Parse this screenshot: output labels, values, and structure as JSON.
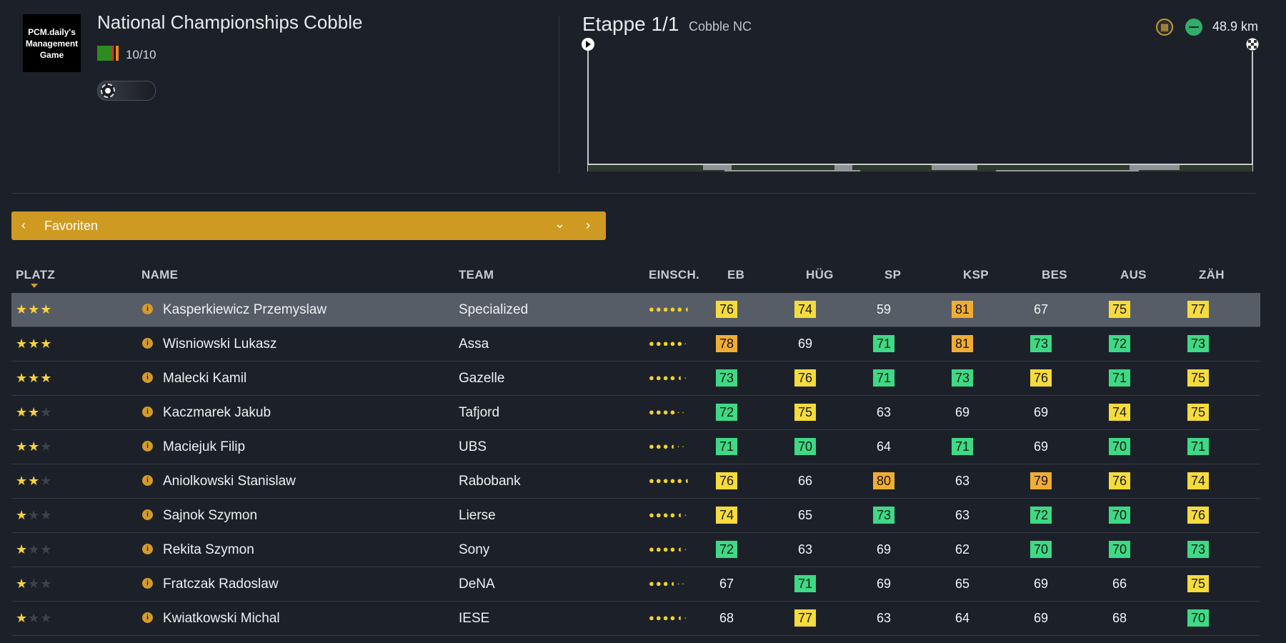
{
  "header": {
    "logo_text": "PCM.daily's Management Game",
    "race_title": "National Championships Cobble",
    "race_count": "10/10",
    "flag_icon": "flag-zambia-icon"
  },
  "stage": {
    "title": "Etappe 1/1",
    "subtitle": "Cobble NC",
    "distance": "48.9 km",
    "icons": [
      "cobble-icon",
      "flat-icon"
    ]
  },
  "filter": {
    "label": "Favoriten",
    "color": "#cf9a22"
  },
  "table": {
    "columns": [
      "PLATZ",
      "NAME",
      "TEAM",
      "EINSCH.",
      "EB",
      "HÜG",
      "SP",
      "KSP",
      "BES",
      "AUS",
      "ZÄH"
    ],
    "rows": [
      {
        "stars": 3,
        "name": "Kasperkiewicz Przemyslaw",
        "team": "Specialized",
        "dots": "●●●●●◖",
        "stats": [
          "76",
          "74",
          "59",
          "81",
          "67",
          "75",
          "77"
        ],
        "classes": [
          "yellow",
          "yellow",
          "plain",
          "orange",
          "plain",
          "yellow",
          "yellow"
        ]
      },
      {
        "stars": 3,
        "name": "Wisniowski Lukasz",
        "team": "Assa",
        "dots": "●●●●●·",
        "stats": [
          "78",
          "69",
          "71",
          "81",
          "73",
          "72",
          "73"
        ],
        "classes": [
          "orange",
          "plain",
          "green",
          "orange",
          "green",
          "green",
          "green"
        ]
      },
      {
        "stars": 3,
        "name": "Malecki Kamil",
        "team": "Gazelle",
        "dots": "●●●●◖·",
        "stats": [
          "73",
          "76",
          "71",
          "73",
          "76",
          "71",
          "75"
        ],
        "classes": [
          "green",
          "yellow",
          "green",
          "green",
          "yellow",
          "green",
          "yellow"
        ]
      },
      {
        "stars": 2,
        "name": "Kaczmarek Jakub",
        "team": "Tafjord",
        "dots": "●●●●··",
        "stats": [
          "72",
          "75",
          "63",
          "69",
          "69",
          "74",
          "75"
        ],
        "classes": [
          "green",
          "yellow",
          "plain",
          "plain",
          "plain",
          "yellow",
          "yellow"
        ]
      },
      {
        "stars": 2,
        "name": "Maciejuk Filip",
        "team": "UBS",
        "dots": "●●●◖··",
        "stats": [
          "71",
          "70",
          "64",
          "71",
          "69",
          "70",
          "71"
        ],
        "classes": [
          "green",
          "green",
          "plain",
          "green",
          "plain",
          "green",
          "green"
        ]
      },
      {
        "stars": 2,
        "name": "Aniolkowski Stanislaw",
        "team": "Rabobank",
        "dots": "●●●●●◖",
        "stats": [
          "76",
          "66",
          "80",
          "63",
          "79",
          "76",
          "74"
        ],
        "classes": [
          "yellow",
          "plain",
          "orange",
          "plain",
          "orange",
          "yellow",
          "yellow"
        ]
      },
      {
        "stars": 1,
        "name": "Sajnok Szymon",
        "team": "Lierse",
        "dots": "●●●●◖·",
        "stats": [
          "74",
          "65",
          "73",
          "63",
          "72",
          "70",
          "76"
        ],
        "classes": [
          "yellow",
          "plain",
          "green",
          "plain",
          "green",
          "green",
          "yellow"
        ]
      },
      {
        "stars": 1,
        "name": "Rekita Szymon",
        "team": "Sony",
        "dots": "●●●●◖·",
        "stats": [
          "72",
          "63",
          "69",
          "62",
          "70",
          "70",
          "73"
        ],
        "classes": [
          "green",
          "plain",
          "plain",
          "plain",
          "green",
          "green",
          "green"
        ]
      },
      {
        "stars": 1,
        "name": "Fratczak Radoslaw",
        "team": "DeNA",
        "dots": "●●●◖··",
        "stats": [
          "67",
          "71",
          "69",
          "65",
          "69",
          "66",
          "75"
        ],
        "classes": [
          "plain",
          "green",
          "plain",
          "plain",
          "plain",
          "plain",
          "yellow"
        ]
      },
      {
        "stars": 1,
        "name": "Kwiatkowski Michal",
        "team": "IESE",
        "dots": "●●●●◖·",
        "stats": [
          "68",
          "77",
          "63",
          "64",
          "69",
          "68",
          "70"
        ],
        "classes": [
          "plain",
          "yellow",
          "plain",
          "plain",
          "plain",
          "plain",
          "green"
        ]
      }
    ]
  }
}
